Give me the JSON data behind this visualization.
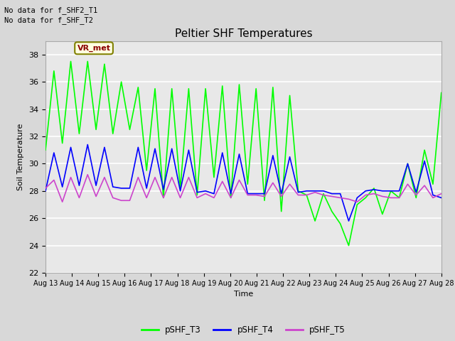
{
  "title": "Peltier SHF Temperatures",
  "ylabel": "Soil Temperature",
  "xlabel": "Time",
  "annotations": [
    "No data for f_SHF2_T1",
    "No data for f_SHF_T2"
  ],
  "vr_label": "VR_met",
  "ylim": [
    22,
    39
  ],
  "yticks": [
    22,
    24,
    26,
    28,
    30,
    32,
    34,
    36,
    38
  ],
  "xtick_labels": [
    "Aug 13",
    "Aug 14",
    "Aug 15",
    "Aug 16",
    "Aug 17",
    "Aug 18",
    "Aug 19",
    "Aug 20",
    "Aug 21",
    "Aug 22",
    "Aug 23",
    "Aug 24",
    "Aug 25",
    "Aug 26",
    "Aug 27",
    "Aug 28"
  ],
  "fig_bg_color": "#d8d8d8",
  "plot_bg_color": "#e8e8e8",
  "grid_color": "#ffffff",
  "line_T3_color": "#00ff00",
  "line_T4_color": "#0000ff",
  "line_T5_color": "#cc44cc",
  "legend_labels": [
    "pSHF_T3",
    "pSHF_T4",
    "pSHF_T5"
  ],
  "pSHF_T3": [
    31.0,
    36.8,
    31.5,
    37.5,
    32.2,
    37.5,
    32.5,
    37.3,
    32.2,
    36.0,
    32.5,
    35.6,
    29.5,
    35.5,
    27.5,
    35.5,
    28.2,
    35.5,
    27.7,
    35.5,
    29.0,
    35.7,
    27.5,
    35.8,
    28.5,
    35.5,
    27.3,
    35.6,
    26.5,
    35.0,
    28.0,
    27.7,
    25.8,
    27.8,
    26.5,
    25.6,
    24.0,
    27.0,
    27.5,
    28.2,
    26.3,
    28.0,
    27.5,
    30.0,
    27.5,
    31.0,
    28.5,
    35.2
  ],
  "pSHF_T4": [
    28.0,
    30.8,
    28.3,
    31.2,
    28.4,
    31.4,
    28.4,
    31.2,
    28.3,
    28.2,
    28.2,
    31.2,
    28.2,
    31.1,
    28.1,
    31.1,
    28.0,
    31.0,
    27.9,
    28.0,
    27.8,
    30.8,
    27.8,
    30.7,
    27.8,
    27.8,
    27.8,
    30.6,
    27.8,
    30.5,
    27.9,
    28.0,
    28.0,
    28.0,
    27.8,
    27.8,
    25.8,
    27.5,
    28.0,
    28.1,
    28.0,
    28.0,
    28.0,
    30.0,
    27.9,
    30.2,
    27.7,
    27.5
  ],
  "pSHF_T5": [
    28.2,
    28.8,
    27.2,
    29.0,
    27.5,
    29.2,
    27.6,
    29.0,
    27.5,
    27.3,
    27.3,
    29.0,
    27.5,
    29.0,
    27.5,
    29.0,
    27.5,
    29.0,
    27.5,
    27.8,
    27.5,
    28.7,
    27.5,
    28.8,
    27.7,
    27.7,
    27.6,
    28.6,
    27.6,
    28.5,
    27.7,
    27.7,
    27.9,
    27.7,
    27.6,
    27.5,
    27.4,
    27.2,
    27.7,
    27.8,
    27.6,
    27.5,
    27.5,
    28.5,
    27.7,
    28.4,
    27.5,
    27.8
  ]
}
